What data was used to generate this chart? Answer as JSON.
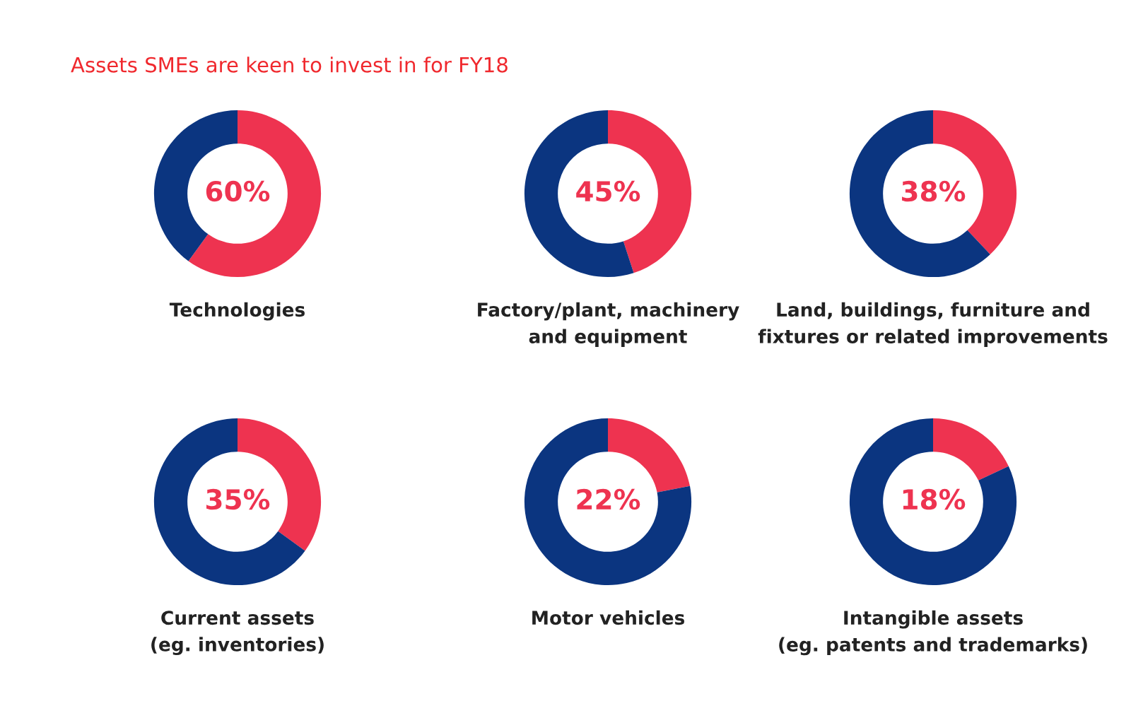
{
  "chart_data": [
    {
      "type": "donut",
      "annotations": [
        "Assets SMEs are keen to invest in for FY18"
      ],
      "xlabel": "Technologies",
      "categories": [
        null,
        null
      ],
      "values": [
        60,
        40
      ],
      "colors": [
        "#ee3350",
        "#0b3580"
      ],
      "value_labels": [
        "60%",
        null
      ]
    },
    {
      "type": "donut",
      "xlabel": "Factory/plant, machinery\nand equipment",
      "categories": [
        null,
        null
      ],
      "values": [
        45,
        55
      ],
      "colors": [
        "#ee3350",
        "#0b3580"
      ],
      "value_labels": [
        "45%",
        null
      ]
    },
    {
      "type": "donut",
      "xlabel": "Land, buildings, furniture and\nfixtures or related improvements",
      "categories": [
        null,
        null
      ],
      "values": [
        38,
        62
      ],
      "colors": [
        "#ee3350",
        "#0b3580"
      ],
      "value_labels": [
        "38%",
        null
      ]
    },
    {
      "type": "donut",
      "xlabel": "Current assets\n(eg. inventories)",
      "categories": [
        null,
        null
      ],
      "values": [
        35,
        65
      ],
      "colors": [
        "#ee3350",
        "#0b3580"
      ],
      "value_labels": [
        "35%",
        null
      ]
    },
    {
      "type": "donut",
      "xlabel": "Motor vehicles",
      "categories": [
        null,
        null
      ],
      "values": [
        22,
        78
      ],
      "colors": [
        "#ee3350",
        "#0b3580"
      ],
      "value_labels": [
        "22%",
        null
      ]
    },
    {
      "type": "donut",
      "xlabel": "Intangible assets\n(eg. patents and trademarks)",
      "categories": [
        null,
        null
      ],
      "values": [
        18,
        82
      ],
      "colors": [
        "#ee3350",
        "#0b3580"
      ],
      "value_labels": [
        "18%",
        null
      ]
    }
  ]
}
